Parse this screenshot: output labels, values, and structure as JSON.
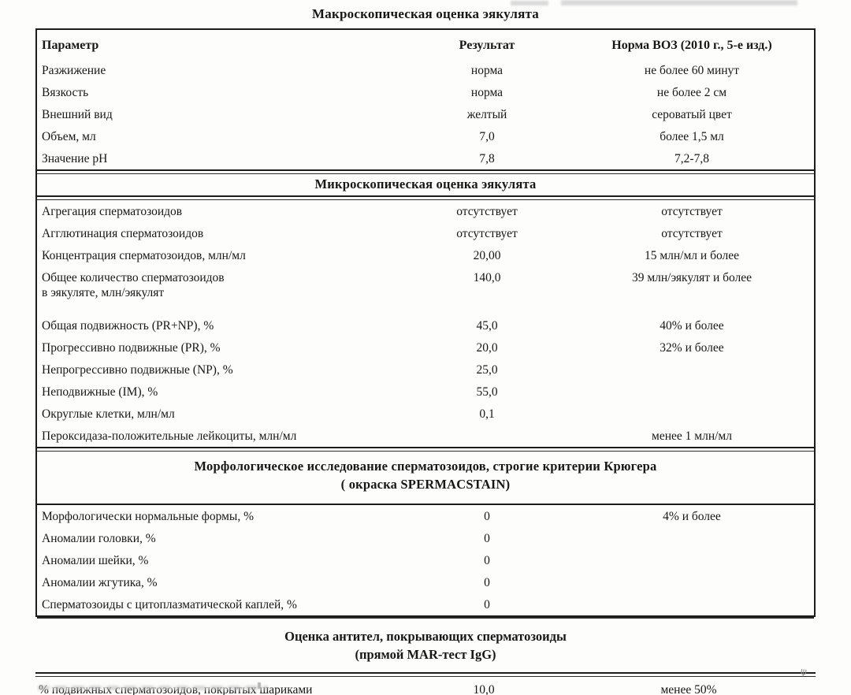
{
  "artifacts": {
    "scan_mark_glyph": "ψ"
  },
  "document": {
    "macroscopic": {
      "title": "Макроскопическая оценка эякулята",
      "columns": {
        "parameter": "Параметр",
        "result": "Результат",
        "norm": "Норма ВОЗ (2010 г., 5-е изд.)"
      },
      "rows": [
        {
          "parameter": "Разжижение",
          "result": "норма",
          "norm": "не более 60 минут"
        },
        {
          "parameter": "Вязкость",
          "result": "норма",
          "norm": "не более 2 см"
        },
        {
          "parameter": "Внешний вид",
          "result": "желтый",
          "norm": "сероватый цвет"
        },
        {
          "parameter": "Объем, мл",
          "result": "7,0",
          "norm": "более 1,5 мл"
        },
        {
          "parameter": "Значение pH",
          "result": "7,8",
          "norm": "7,2-7,8"
        }
      ]
    },
    "microscopic": {
      "title": "Микроскопическая оценка эякулята",
      "rows": [
        {
          "parameter": "Агрегация сперматозоидов",
          "result": "отсутствует",
          "norm": "отсутствует"
        },
        {
          "parameter": "Агглютинация сперматозоидов",
          "result": "отсутствует",
          "norm": "отсутствует"
        },
        {
          "parameter": "Концентрация сперматозоидов, млн/мл",
          "result": "20,00",
          "norm": "15 млн/мл и более"
        },
        {
          "parameter": "Общее количество сперматозоидов",
          "parameter_line2": "в эякуляте, млн/эякулят",
          "result": "140,0",
          "norm": "39 млн/эякулят и более"
        },
        {
          "parameter": "Общая подвижность (PR+NP), %",
          "result": "45,0",
          "norm": "40% и более"
        },
        {
          "parameter": "Прогрессивно подвижные (PR), %",
          "result": "20,0",
          "norm": "32% и более"
        },
        {
          "parameter": "Непрогрессивно подвижные (NP), %",
          "result": "25,0",
          "norm": ""
        },
        {
          "parameter": "Неподвижные (IM), %",
          "result": "55,0",
          "norm": ""
        },
        {
          "parameter": "Округлые клетки, млн/мл",
          "result": "0,1",
          "norm": ""
        },
        {
          "parameter": "Пероксидаза-положительные лейкоциты, млн/мл",
          "result": "",
          "norm": "менее 1 млн/мл"
        }
      ]
    },
    "morphology": {
      "title_line1": "Морфологическое исследование сперматозоидов, строгие критерии Крюгера",
      "title_line2": "( окраска SPERMACSTAIN)",
      "rows": [
        {
          "parameter": "Морфологически нормальные формы, %",
          "result": "0",
          "norm": "4% и более"
        },
        {
          "parameter": "Аномалии головки, %",
          "result": "0",
          "norm": ""
        },
        {
          "parameter": "Аномалии шейки, %",
          "result": "0",
          "norm": ""
        },
        {
          "parameter": "Аномалии жгутика, %",
          "result": "0",
          "norm": ""
        },
        {
          "parameter": "Сперматозоиды с цитоплазматической каплей, %",
          "result": "0",
          "norm": ""
        }
      ]
    },
    "mar_test": {
      "title_line1": "Оценка антител, покрывающих сперматозоиды",
      "title_line2": "(прямой MAR-тест IgG)",
      "rows": [
        {
          "parameter": "% подвижных сперматозоидов, покрытых шариками",
          "result": "10,0",
          "norm": "менее 50%"
        }
      ]
    }
  }
}
